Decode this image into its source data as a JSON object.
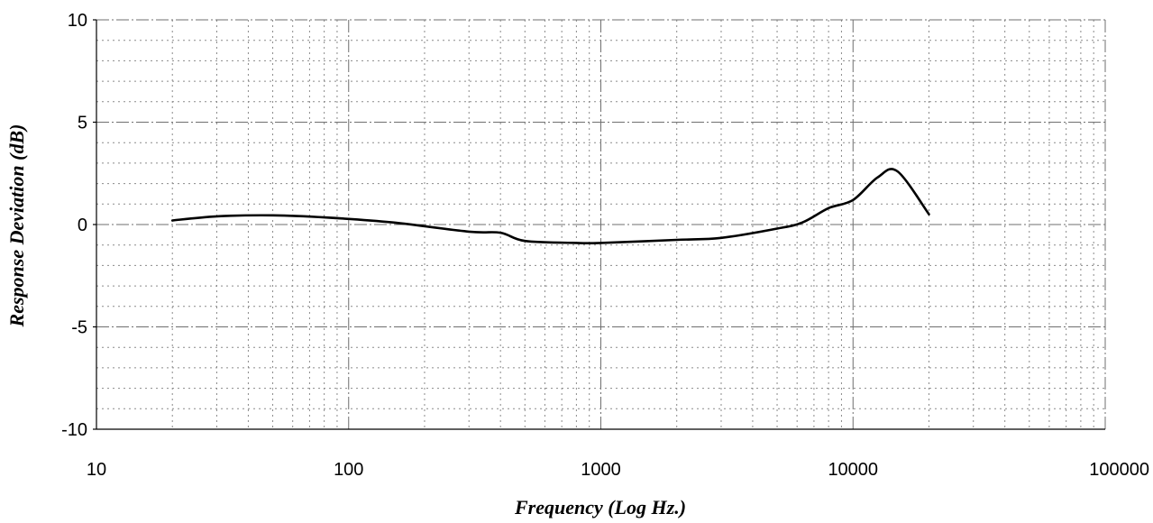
{
  "chart_data": {
    "type": "line",
    "title": "",
    "xlabel": "Frequency (Log Hz.)",
    "ylabel": "Response Deviation (dB)",
    "x_scale": "log",
    "xlim": [
      10,
      100000
    ],
    "ylim": [
      -10,
      10
    ],
    "x_ticks": [
      10,
      100,
      1000,
      10000,
      100000
    ],
    "x_tick_labels": [
      "10",
      "100",
      "1000",
      "10000",
      "100000"
    ],
    "y_ticks": [
      10,
      5,
      0,
      -5,
      -10
    ],
    "y_tick_labels": [
      "10",
      "5",
      "0",
      "-5",
      "-10"
    ],
    "grid": true,
    "legend": "none",
    "series": [
      {
        "color": "#000000",
        "x": [
          20,
          30,
          50,
          80,
          150,
          300,
          400,
          500,
          800,
          1000,
          2000,
          3000,
          5000,
          6300,
          8000,
          10000,
          12500,
          15000,
          20000
        ],
        "y": [
          0.2,
          0.4,
          0.45,
          0.35,
          0.1,
          -0.35,
          -0.4,
          -0.8,
          -0.9,
          -0.9,
          -0.75,
          -0.65,
          -0.2,
          0.1,
          0.8,
          1.2,
          2.3,
          2.6,
          0.5
        ]
      }
    ]
  }
}
